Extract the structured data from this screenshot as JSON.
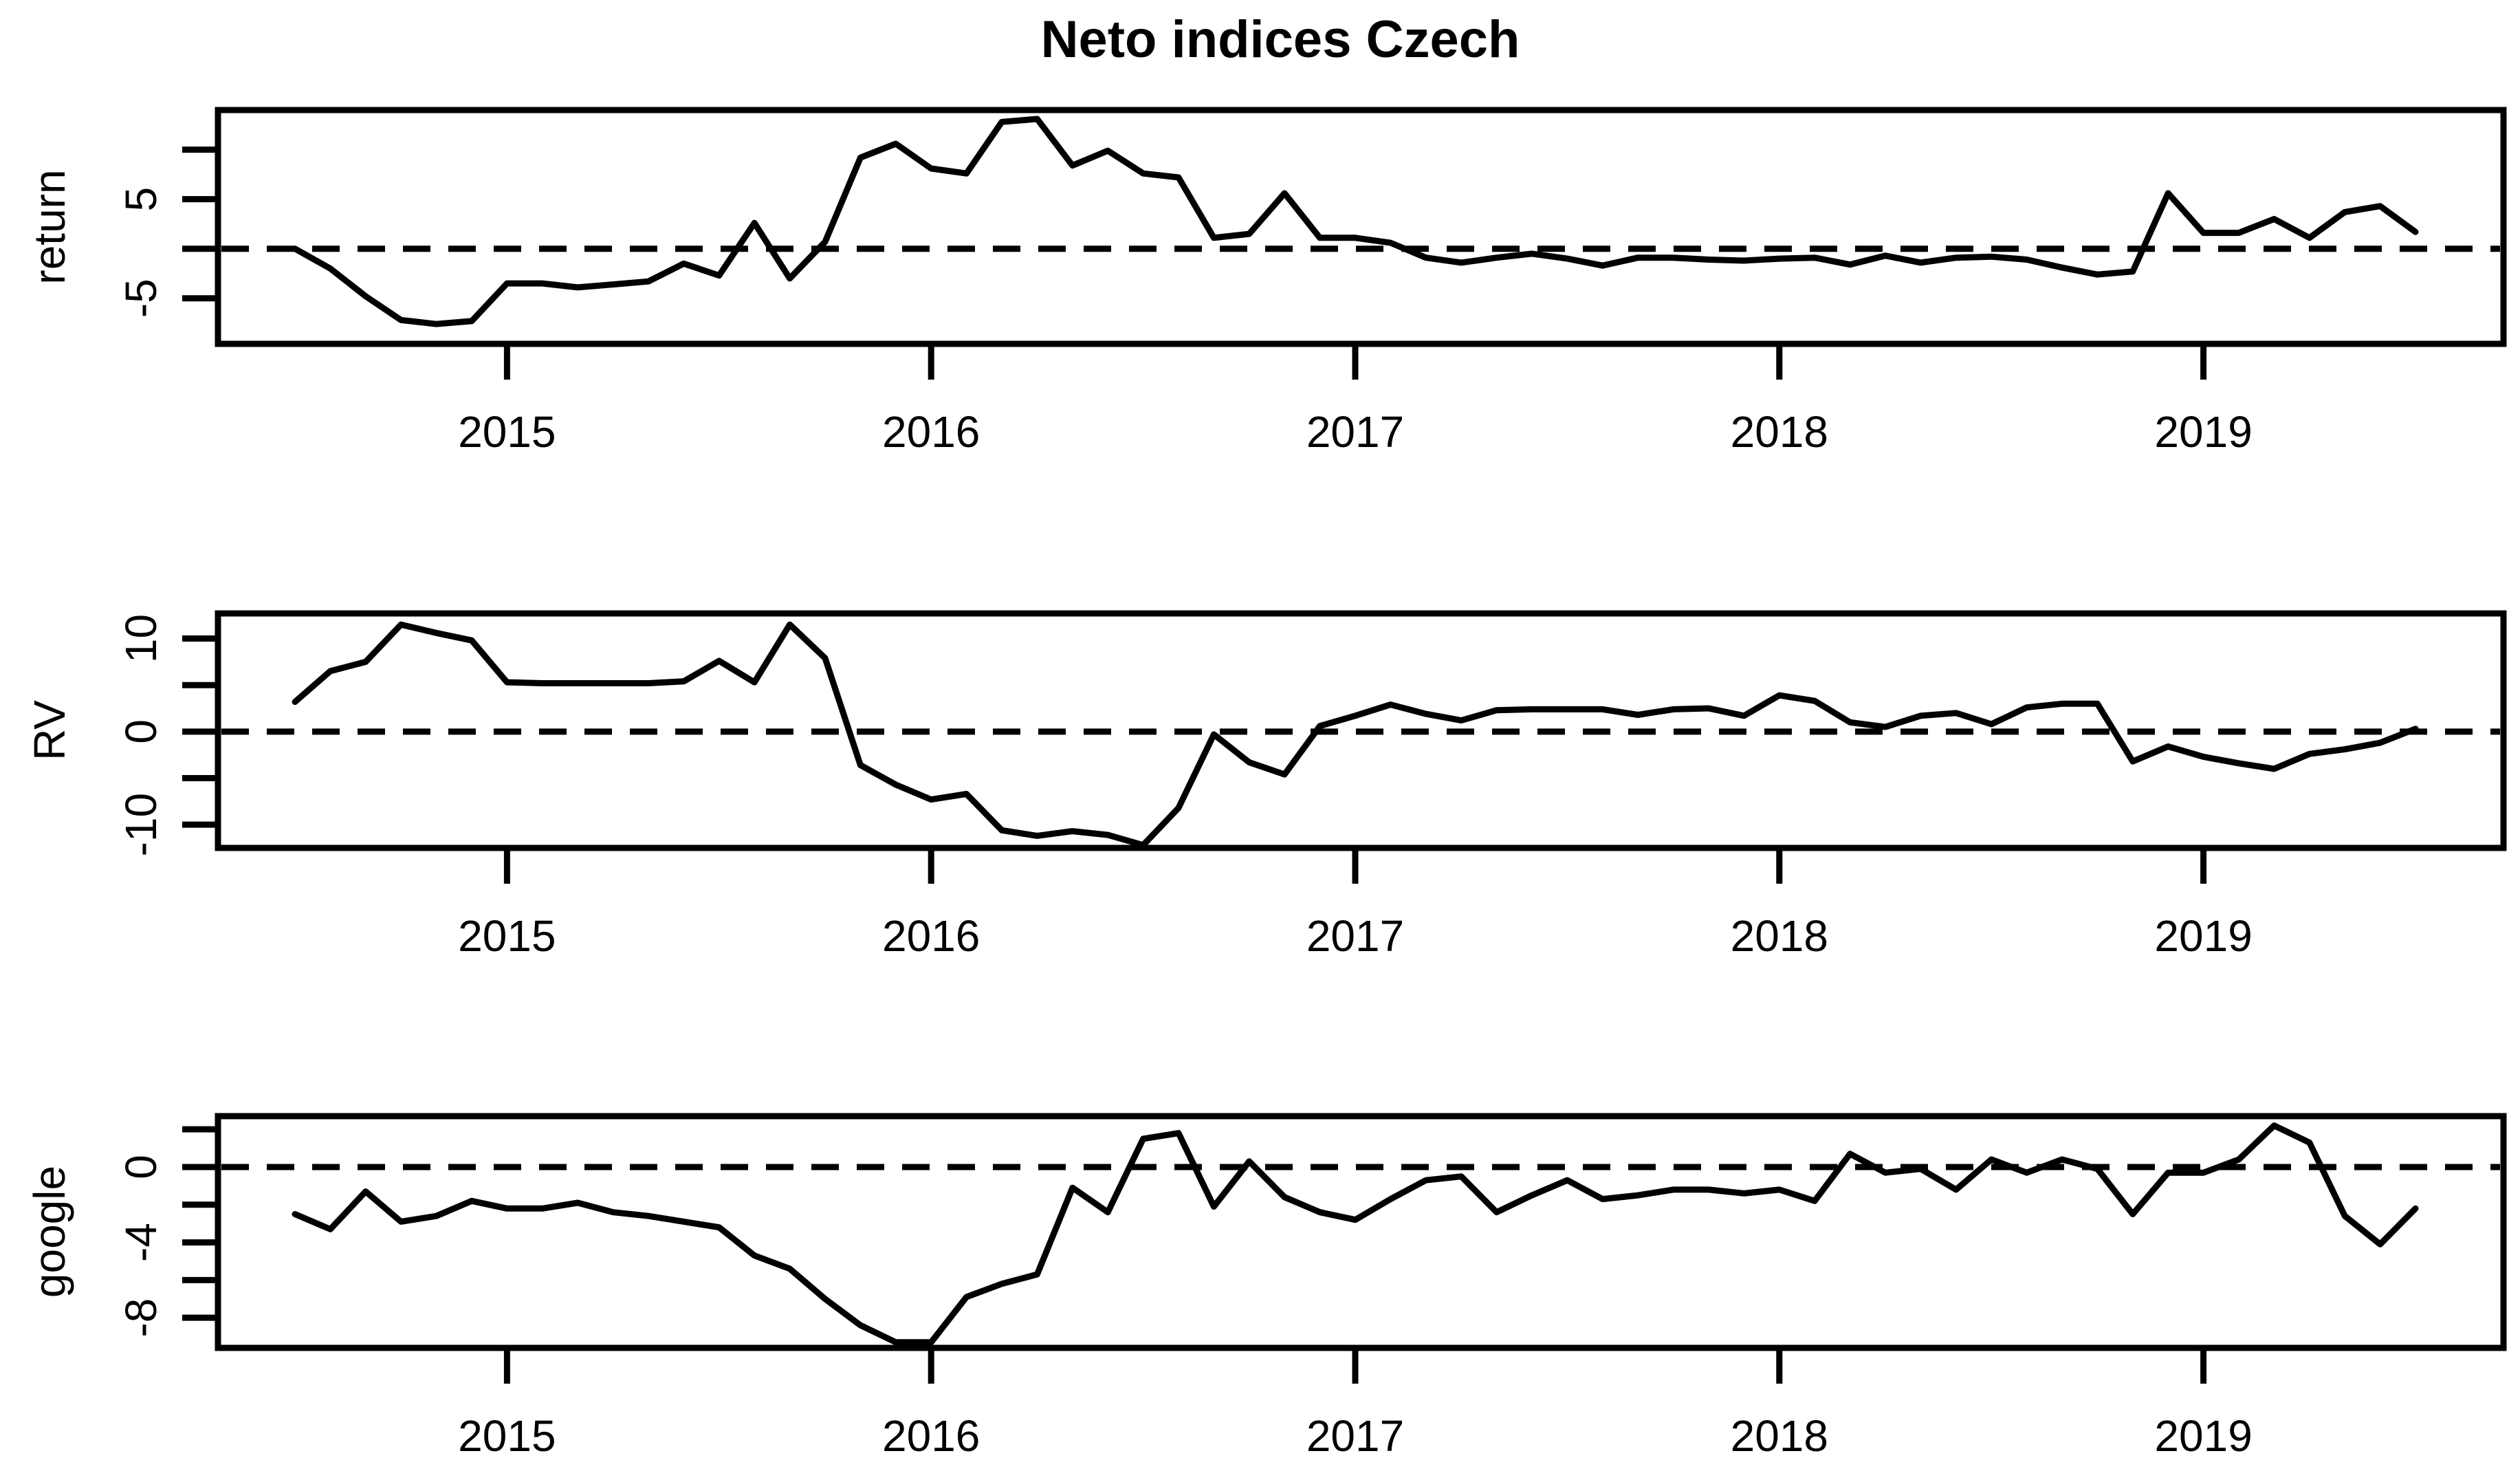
{
  "title": "Neto indices Czech",
  "colors": {
    "line": "#000000",
    "background": "#ffffff",
    "text": "#000000"
  },
  "chart_data": {
    "type": "line",
    "layout": "three stacked panels sharing monthly x axis",
    "x": {
      "start": "2014-07",
      "frequency": "monthly",
      "n_points": 61,
      "tick_labels": [
        "2015",
        "2016",
        "2017",
        "2018",
        "2019"
      ],
      "tick_month_index": [
        6,
        18,
        30,
        42,
        54
      ]
    },
    "panels": [
      {
        "id": "return",
        "ylabel": "return",
        "ylim": [
          -9.6,
          14.0
        ],
        "zero_line_dashed": true,
        "y_ticks": [
          {
            "v": 10,
            "label": ""
          },
          {
            "v": 5,
            "label": "5"
          },
          {
            "v": 0,
            "label": ""
          },
          {
            "v": -5,
            "label": "-5"
          }
        ],
        "values": [
          0,
          -2,
          -4.8,
          -7.2,
          -7.6,
          -7.3,
          -3.5,
          -3.5,
          -3.9,
          -3.6,
          -3.3,
          -1.5,
          -2.7,
          2.6,
          -3,
          0.7,
          9.2,
          10.6,
          8.1,
          7.6,
          12.8,
          13.1,
          8.4,
          9.9,
          7.6,
          7.2,
          1.1,
          1.5,
          5.6,
          1.1,
          1.1,
          0.6,
          -0.9,
          -1.4,
          -0.9,
          -0.5,
          -1,
          -1.7,
          -0.9,
          -0.9,
          -1.1,
          -1.2,
          -1,
          -0.9,
          -1.6,
          -0.7,
          -1.4,
          -0.9,
          -0.8,
          -1.1,
          -1.9,
          -2.6,
          -2.3,
          5.6,
          1.6,
          1.6,
          3,
          1.1,
          3.7,
          4.3,
          1.7
        ]
      },
      {
        "id": "rv",
        "ylabel": "RV",
        "ylim": [
          -12.5,
          12.7
        ],
        "zero_line_dashed": true,
        "y_ticks": [
          {
            "v": 10,
            "label": "10"
          },
          {
            "v": 5,
            "label": ""
          },
          {
            "v": 0,
            "label": "0"
          },
          {
            "v": -5,
            "label": ""
          },
          {
            "v": -10,
            "label": "-10"
          }
        ],
        "values": [
          3.2,
          6.5,
          7.5,
          11.5,
          10.6,
          9.8,
          5.3,
          5.2,
          5.2,
          5.2,
          5.2,
          5.4,
          7.6,
          5.3,
          11.5,
          7.9,
          -3.6,
          -5.7,
          -7.3,
          -6.7,
          -10.6,
          -11.2,
          -10.7,
          -11.1,
          -12.2,
          -8.2,
          -0.3,
          -3.3,
          -4.6,
          0.6,
          1.7,
          2.9,
          1.9,
          1.2,
          2.3,
          2.4,
          2.4,
          2.4,
          1.8,
          2.4,
          2.5,
          1.7,
          3.9,
          3.3,
          1,
          0.5,
          1.7,
          2,
          0.8,
          2.6,
          3,
          3,
          -3.2,
          -1.6,
          -2.7,
          -3.4,
          -4,
          -2.4,
          -1.9,
          -1.2,
          0.3
        ]
      },
      {
        "id": "google",
        "ylabel": "google",
        "ylim": [
          -9.6,
          2.7
        ],
        "zero_line_dashed": true,
        "y_ticks": [
          {
            "v": 2,
            "label": ""
          },
          {
            "v": 0,
            "label": "0"
          },
          {
            "v": -2,
            "label": ""
          },
          {
            "v": -4,
            "label": "-4"
          },
          {
            "v": -6,
            "label": ""
          },
          {
            "v": -8,
            "label": "-8"
          }
        ],
        "values": [
          -2.5,
          -3.3,
          -1.3,
          -2.9,
          -2.6,
          -1.8,
          -2.2,
          -2.2,
          -1.9,
          -2.4,
          -2.6,
          -2.9,
          -3.2,
          -4.7,
          -5.4,
          -7,
          -8.4,
          -9.3,
          -9.3,
          -6.9,
          -6.2,
          -5.7,
          -1.1,
          -2.4,
          1.5,
          1.8,
          -2.1,
          0.3,
          -1.6,
          -2.4,
          -2.8,
          -1.7,
          -0.7,
          -0.5,
          -2.4,
          -1.5,
          -0.7,
          -1.7,
          -1.5,
          -1.2,
          -1.2,
          -1.4,
          -1.2,
          -1.8,
          0.7,
          -0.3,
          -0.1,
          -1.2,
          0.4,
          -0.3,
          0.4,
          -0.1,
          -2.5,
          -0.3,
          -0.3,
          0.4,
          2.2,
          1.3,
          -2.6,
          -4.1,
          -2.2
        ]
      }
    ]
  }
}
